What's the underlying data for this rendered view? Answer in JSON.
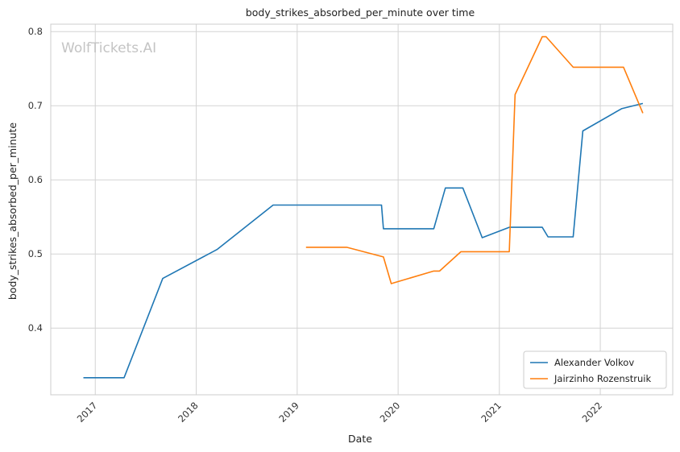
{
  "chart_data": {
    "type": "line",
    "title": "body_strikes_absorbed_per_minute over time",
    "xlabel": "Date",
    "ylabel": "body_strikes_absorbed_per_minute",
    "watermark": "WolfTickets.AI",
    "x_ticks": [
      "2017",
      "2018",
      "2019",
      "2020",
      "2021",
      "2022"
    ],
    "y_ticks": [
      "0.4",
      "0.5",
      "0.6",
      "0.7",
      "0.8"
    ],
    "xlim": [
      "2016-07-24",
      "2022-09-20"
    ],
    "ylim": [
      0.31,
      0.81
    ],
    "grid": true,
    "legend_position": "lower-right",
    "series": [
      {
        "name": "Alexander Volkov",
        "color": "#1f77b4",
        "points": [
          [
            "2016-11-19",
            0.333
          ],
          [
            "2017-04-15",
            0.333
          ],
          [
            "2017-09-02",
            0.467
          ],
          [
            "2018-03-17",
            0.506
          ],
          [
            "2018-10-06",
            0.566
          ],
          [
            "2019-11-02",
            0.566
          ],
          [
            "2019-11-09",
            0.534
          ],
          [
            "2020-05-09",
            0.534
          ],
          [
            "2020-06-20",
            0.589
          ],
          [
            "2020-08-22",
            0.589
          ],
          [
            "2020-10-31",
            0.522
          ],
          [
            "2021-02-06",
            0.536
          ],
          [
            "2021-06-05",
            0.536
          ],
          [
            "2021-06-26",
            0.523
          ],
          [
            "2021-09-25",
            0.523
          ],
          [
            "2021-10-30",
            0.666
          ],
          [
            "2022-03-19",
            0.696
          ],
          [
            "2022-06-04",
            0.703
          ]
        ]
      },
      {
        "name": "Jairzinho Rozenstruik",
        "color": "#ff7f0e",
        "points": [
          [
            "2019-02-02",
            0.509
          ],
          [
            "2019-06-29",
            0.509
          ],
          [
            "2019-11-09",
            0.496
          ],
          [
            "2019-12-07",
            0.46
          ],
          [
            "2020-05-09",
            0.477
          ],
          [
            "2020-05-30",
            0.477
          ],
          [
            "2020-08-15",
            0.503
          ],
          [
            "2021-02-06",
            0.503
          ],
          [
            "2021-02-27",
            0.715
          ],
          [
            "2021-06-05",
            0.793
          ],
          [
            "2021-06-19",
            0.793
          ],
          [
            "2021-09-25",
            0.752
          ],
          [
            "2022-03-26",
            0.752
          ],
          [
            "2022-06-04",
            0.69
          ]
        ]
      }
    ]
  }
}
